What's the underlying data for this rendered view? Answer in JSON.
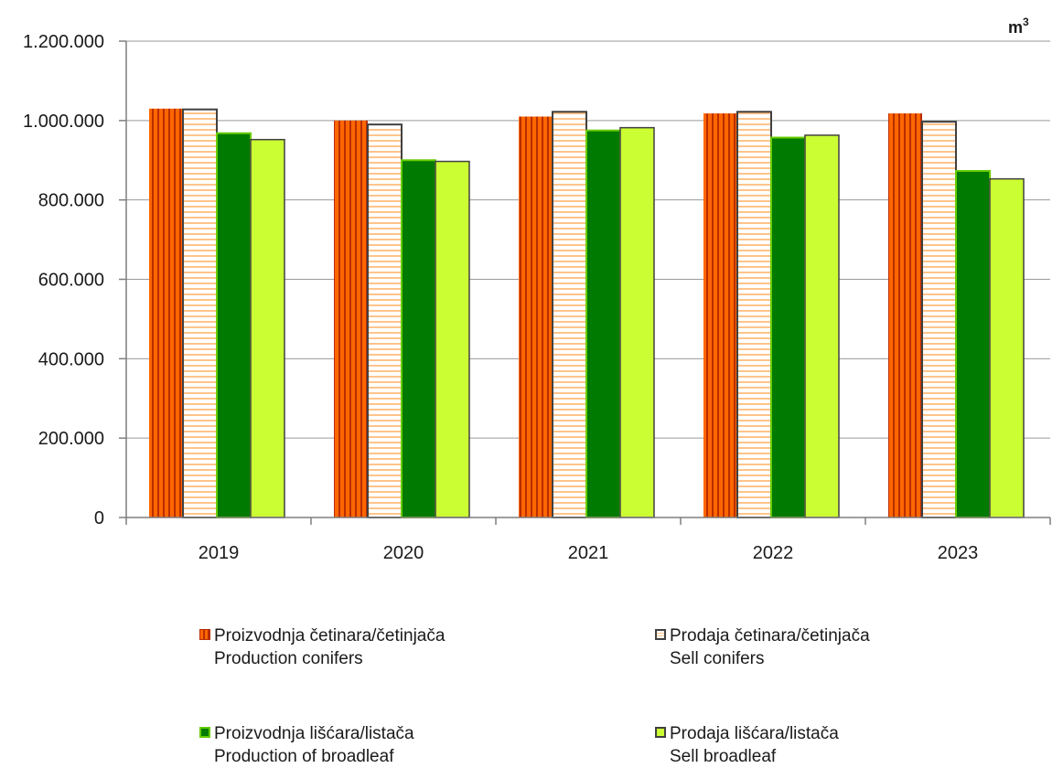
{
  "chart_data": {
    "type": "bar",
    "unit": "m",
    "unit_sup": "3",
    "categories": [
      "2019",
      "2020",
      "2021",
      "2022",
      "2023"
    ],
    "ylim": [
      0,
      1200000
    ],
    "yticks": [
      0,
      200000,
      400000,
      600000,
      800000,
      1000000,
      1200000
    ],
    "ytick_labels": [
      "0",
      "200.000",
      "400.000",
      "600.000",
      "800.000",
      "1.000.000",
      "1.200.000"
    ],
    "grid": true,
    "legend_position": "bottom",
    "series": [
      {
        "name": "Proizvodnja četinara/četinjača",
        "name_en": "Production conifers",
        "values": [
          1030000,
          1000000,
          1010000,
          1018000,
          1018000
        ],
        "color": "#ff6600",
        "pattern": "vertical-stripes"
      },
      {
        "name": "Prodaja četinara/četinjača",
        "name_en": "Sell conifers",
        "values": [
          1028000,
          990000,
          1022000,
          1022000,
          997000
        ],
        "color": "#ffffff",
        "pattern": "horizontal-stripes"
      },
      {
        "name": "Proizvodnja lišćara/listača",
        "name_en": "Production of  broadleaf",
        "values": [
          968000,
          900000,
          975000,
          957000,
          873000
        ],
        "color": "#007a00",
        "pattern": "solid"
      },
      {
        "name": "Prodaja lišćara/listača",
        "name_en": "Sell broadleaf",
        "values": [
          952000,
          897000,
          982000,
          963000,
          853000
        ],
        "color": "#ccff33",
        "pattern": "solid"
      }
    ]
  }
}
